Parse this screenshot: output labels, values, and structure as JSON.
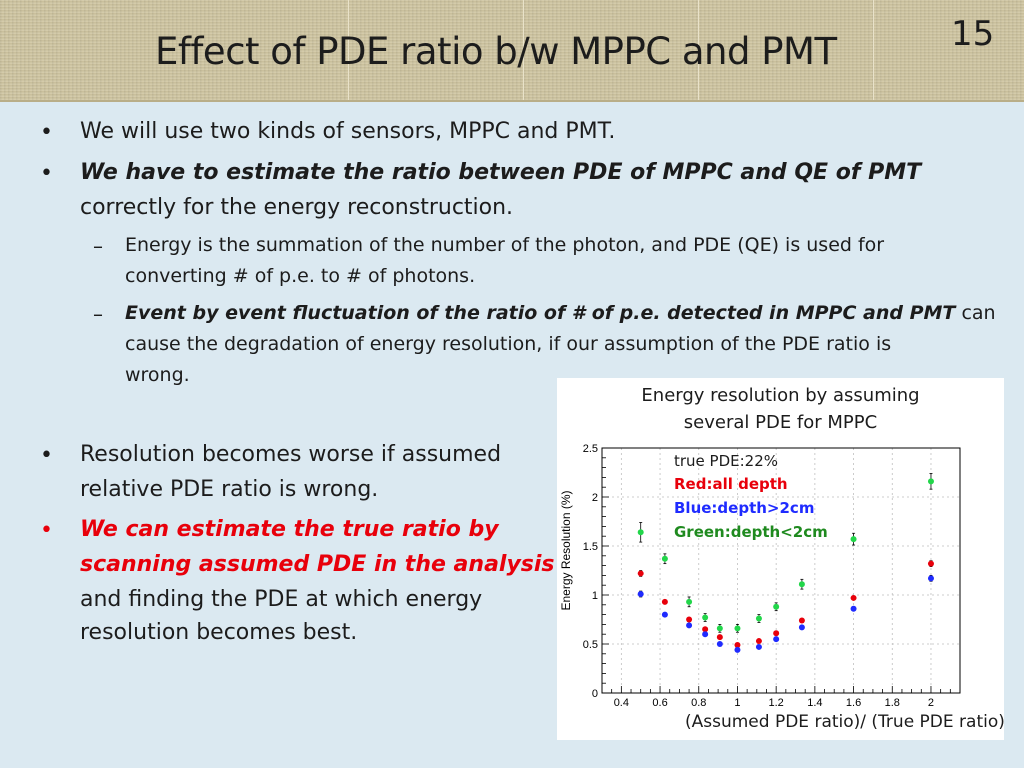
{
  "slide": {
    "title": "Effect of PDE ratio b/w MPPC and PMT",
    "number": "15"
  },
  "bullets": {
    "b1": "We will use two kinds of sensors, MPPC and PMT.",
    "b2_emph": "We have to estimate the ratio between PDE of MPPC and QE of PMT",
    "b2_rest": "correctly for the energy reconstruction.",
    "sub1_line1": "Energy is the summation of the number of the photon, and PDE (QE) is used for",
    "sub1_line2": "converting # of p.e. to # of photons.",
    "sub2_emph": "Event by event fluctuation of the ratio of # of p.e. detected in MPPC and PMT",
    "sub2_rest1": "can",
    "sub2_rest2": "cause the degradation of energy resolution, if our assumption of the PDE ratio is",
    "sub2_rest3": "wrong.",
    "b3_line1": "Resolution becomes worse if assumed",
    "b3_line2": "relative PDE ratio is wrong.",
    "b4_line1": "We can estimate the true ratio by",
    "b4_line2": "scanning assumed PDE in the analysis",
    "b4_line3": "and finding the PDE at which energy",
    "b4_line4": "resolution becomes best.",
    "dash": "–",
    "dot": "•"
  },
  "colors": {
    "red": "#e8000b",
    "blue": "#1f2bff",
    "green": "#22d64a",
    "legend_green": "#1f8a1f"
  },
  "chart_data": {
    "type": "scatter",
    "title": "Energy resolution by assuming several PDE for MPPC",
    "title_line1": "Energy resolution by assuming",
    "title_line2": "several PDE for MPPC",
    "xlabel": "(Assumed PDE ratio)/ (True PDE ratio)",
    "ylabel": "Energy Resolution (%)",
    "xlim": [
      0.3,
      2.15
    ],
    "ylim": [
      0,
      2.5
    ],
    "x_ticks": [
      0.4,
      0.6,
      0.8,
      1,
      1.2,
      1.4,
      1.6,
      1.8,
      2
    ],
    "x_tick_labels": [
      "0.4",
      "0.6",
      "0.8",
      "1",
      "1.2",
      "1.4",
      "1.6",
      "1.8",
      "2"
    ],
    "y_ticks": [
      0,
      0.5,
      1,
      1.5,
      2,
      2.5
    ],
    "y_tick_labels": [
      "0",
      "0.5",
      "1",
      "1.5",
      "2",
      "2.5"
    ],
    "grid": true,
    "legend": {
      "placement": "top-center",
      "line1": "true PDE:22%",
      "line2": "Red:all depth",
      "line3": "Blue:depth>2cm",
      "line4": "Green:depth<2cm"
    },
    "x": [
      0.5,
      0.625,
      0.75,
      0.833,
      0.909,
      1.0,
      1.111,
      1.2,
      1.333,
      1.6,
      2.0
    ],
    "series": [
      {
        "name": "Red:all depth",
        "color": "#e8000b",
        "values": [
          1.22,
          0.93,
          0.75,
          0.65,
          0.57,
          0.49,
          0.53,
          0.61,
          0.74,
          0.97,
          1.32
        ],
        "errors": [
          0.03,
          0.02,
          0.02,
          0.02,
          0.02,
          0.02,
          0.02,
          0.02,
          0.02,
          0.02,
          0.03
        ]
      },
      {
        "name": "Blue:depth>2cm",
        "color": "#1f2bff",
        "values": [
          1.01,
          0.8,
          0.69,
          0.6,
          0.5,
          0.44,
          0.47,
          0.55,
          0.67,
          0.86,
          1.17
        ],
        "errors": [
          0.03,
          0.02,
          0.02,
          0.02,
          0.02,
          0.02,
          0.02,
          0.02,
          0.02,
          0.02,
          0.03
        ]
      },
      {
        "name": "Green:depth<2cm",
        "color": "#22d64a",
        "values": [
          1.64,
          1.37,
          0.93,
          0.77,
          0.66,
          0.66,
          0.76,
          0.88,
          1.11,
          1.57,
          2.16
        ],
        "errors": [
          0.1,
          0.05,
          0.05,
          0.04,
          0.04,
          0.04,
          0.04,
          0.04,
          0.05,
          0.06,
          0.08
        ]
      }
    ]
  }
}
